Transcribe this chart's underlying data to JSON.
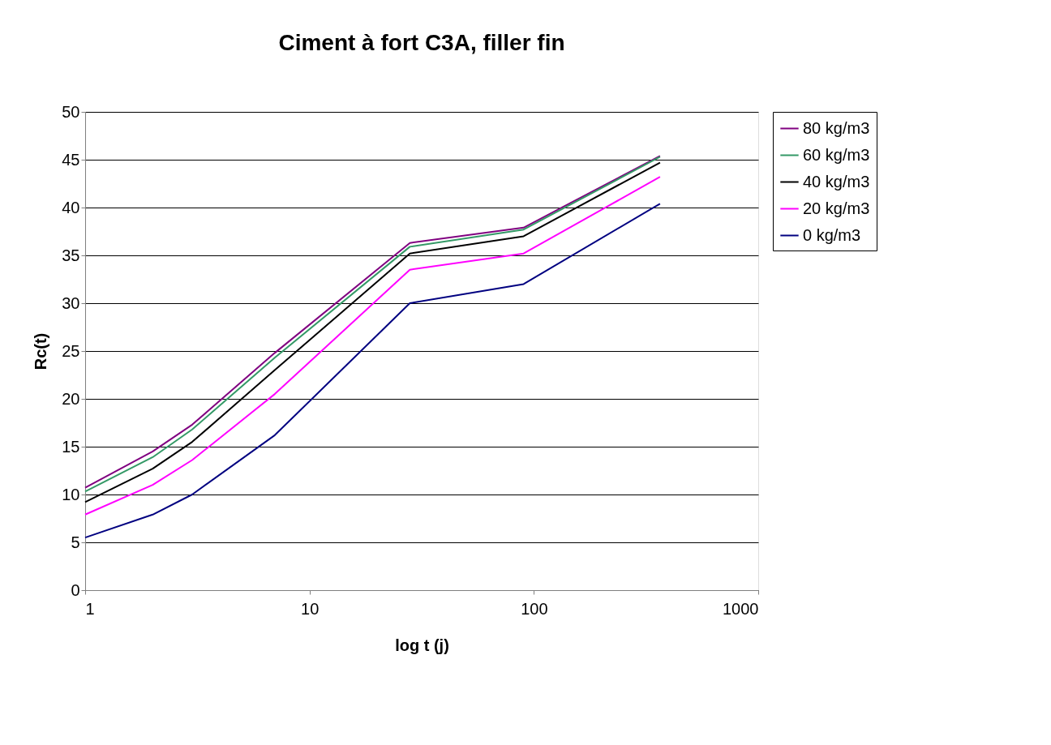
{
  "chart_data": {
    "type": "line",
    "title": "Ciment à fort C3A, filler fin",
    "xlabel": "log t (j)",
    "ylabel": "Rc(t)",
    "x": [
      1,
      2,
      3,
      7,
      28,
      90,
      365
    ],
    "series": [
      {
        "name": "80 kg/m3",
        "color": "#800080",
        "values": [
          10.7,
          14.5,
          17.3,
          24.8,
          36.3,
          37.9,
          45.4
        ]
      },
      {
        "name": "60 kg/m3",
        "color": "#339966",
        "values": [
          10.3,
          13.9,
          16.8,
          24.3,
          35.9,
          37.7,
          45.3
        ]
      },
      {
        "name": "40 kg/m3",
        "color": "#000000",
        "values": [
          9.2,
          12.7,
          15.5,
          23.0,
          35.2,
          37.0,
          44.7
        ]
      },
      {
        "name": "20 kg/m3",
        "color": "#ff00ff",
        "values": [
          7.9,
          11.0,
          13.6,
          20.5,
          33.5,
          35.2,
          43.2
        ]
      },
      {
        "name": "0 kg/m3",
        "color": "#000080",
        "values": [
          5.5,
          7.9,
          10.0,
          16.2,
          30.0,
          32.0,
          40.4
        ]
      }
    ],
    "log": "x",
    "xlim": [
      1,
      1000
    ],
    "xticks": [
      1,
      10,
      100,
      1000
    ],
    "ylim": [
      0,
      50
    ],
    "yticks": [
      0,
      5,
      10,
      15,
      20,
      25,
      30,
      35,
      40,
      45,
      50
    ],
    "grid": "y",
    "legend": "right",
    "marker": "none",
    "line_style": "solid"
  }
}
